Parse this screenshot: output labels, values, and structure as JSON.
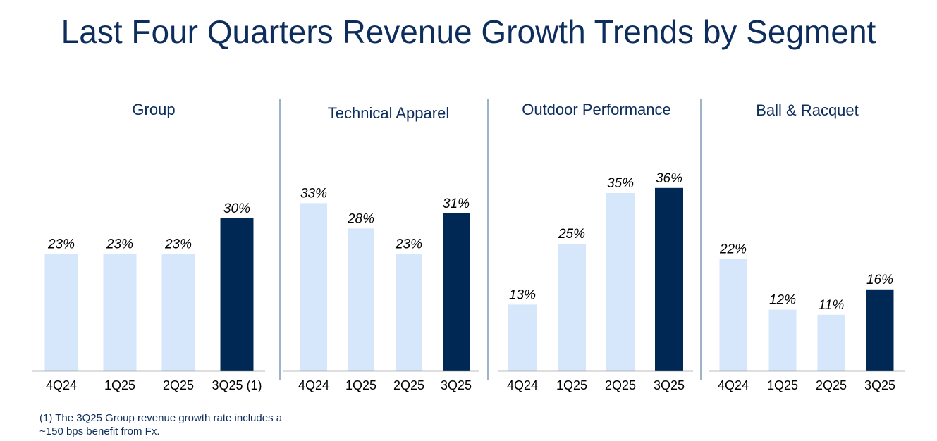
{
  "page_title": "Last Four Quarters Revenue Growth Trends by Segment",
  "footnote": "(1) The 3Q25 Group revenue growth rate includes a ~150 bps benefit from Fx.",
  "colors": {
    "light_bar": "#d6e6fb",
    "dark_bar": "#002855",
    "text": "#0d2d5c",
    "axis": "#7f7f7f"
  },
  "chart_data": [
    {
      "type": "bar",
      "title": "Group",
      "categories": [
        "4Q24",
        "1Q25",
        "2Q25",
        "3Q25 (1)"
      ],
      "values": [
        23,
        23,
        23,
        30
      ],
      "labels": [
        "23%",
        "23%",
        "23%",
        "30%"
      ],
      "highlight_index": 3,
      "ylim": [
        0,
        40
      ]
    },
    {
      "type": "bar",
      "title": "Technical Apparel",
      "categories": [
        "4Q24",
        "1Q25",
        "2Q25",
        "3Q25"
      ],
      "values": [
        33,
        28,
        23,
        31
      ],
      "labels": [
        "33%",
        "28%",
        "23%",
        "31%"
      ],
      "highlight_index": 3,
      "ylim": [
        0,
        40
      ]
    },
    {
      "type": "bar",
      "title": "Outdoor Performance",
      "categories": [
        "4Q24",
        "1Q25",
        "2Q25",
        "3Q25"
      ],
      "values": [
        13,
        25,
        35,
        36
      ],
      "labels": [
        "13%",
        "25%",
        "35%",
        "36%"
      ],
      "highlight_index": 3,
      "ylim": [
        0,
        40
      ]
    },
    {
      "type": "bar",
      "title": "Ball & Racquet",
      "categories": [
        "4Q24",
        "1Q25",
        "2Q25",
        "3Q25"
      ],
      "values": [
        22,
        12,
        11,
        16
      ],
      "labels": [
        "22%",
        "12%",
        "11%",
        "16%"
      ],
      "highlight_index": 3,
      "ylim": [
        0,
        40
      ]
    }
  ]
}
